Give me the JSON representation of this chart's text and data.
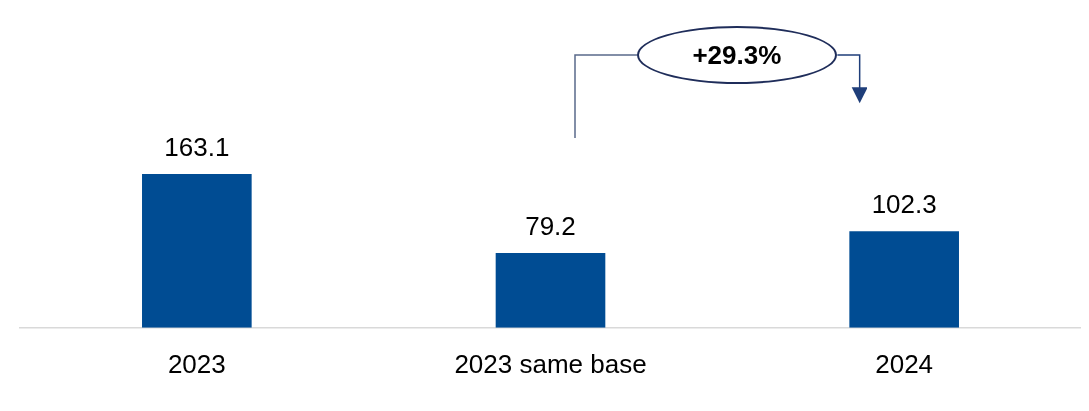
{
  "chart_data": {
    "type": "bar",
    "categories": [
      "2023",
      "2023 same base",
      "2024"
    ],
    "values": [
      163.1,
      79.2,
      102.3
    ],
    "color": "#004c93",
    "data_labels": true,
    "grid": false,
    "legend": false,
    "annotations": [
      "+29.3%"
    ]
  }
}
